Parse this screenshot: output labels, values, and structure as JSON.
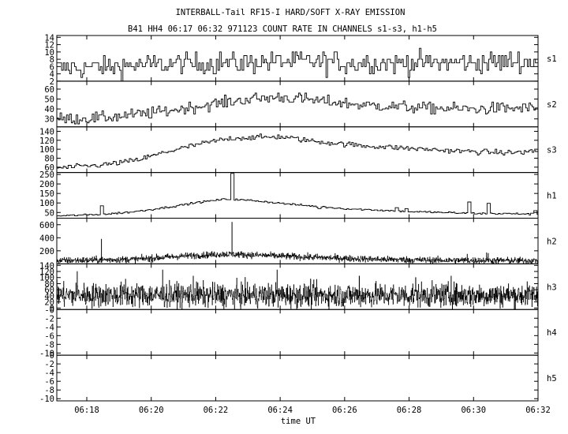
{
  "chart_data": {
    "type": "line",
    "title": "INTERBALL-Tail RF15-I HARD/SOFT X-RAY EMISSION",
    "subtitle": "B41 HH4 06:17 06:32 971123  COUNT RATE IN CHANNELS s1-s3, h1-h5",
    "xlabel": "time UT",
    "x_ticks": [
      "06:18",
      "06:20",
      "06:22",
      "06:24",
      "06:26",
      "06:28",
      "06:30",
      "06:32"
    ],
    "x_tick_minutes": [
      18,
      20,
      22,
      24,
      26,
      28,
      30,
      32
    ],
    "x_range_minutes": [
      17.07,
      32.0
    ],
    "grid": false,
    "panels": [
      {
        "name": "s1",
        "ylim": [
          2,
          14.5
        ],
        "y_ticks": [
          "14",
          "12",
          "10",
          "8",
          "6",
          "4",
          "2"
        ],
        "y_tick_values": [
          14,
          12,
          10,
          8,
          6,
          4,
          2
        ],
        "step": 0.05,
        "profile": [
          [
            17.07,
            5.5
          ],
          [
            20,
            6.5
          ],
          [
            22,
            7
          ],
          [
            24,
            7.5
          ],
          [
            26,
            7
          ],
          [
            28,
            7
          ],
          [
            30,
            7
          ],
          [
            32,
            7.5
          ]
        ],
        "noise": 3.0,
        "integer": true,
        "spikes": []
      },
      {
        "name": "s2",
        "ylim": [
          22,
          68
        ],
        "y_ticks": [
          "60",
          "50",
          "40",
          "30"
        ],
        "y_tick_values": [
          60,
          50,
          40,
          30
        ],
        "step": 0.05,
        "profile": [
          [
            17.07,
            30
          ],
          [
            18.5,
            31
          ],
          [
            20,
            36
          ],
          [
            21.5,
            43
          ],
          [
            23,
            50
          ],
          [
            24,
            52
          ],
          [
            25,
            49
          ],
          [
            26.5,
            44
          ],
          [
            28.5,
            41
          ],
          [
            30,
            40
          ],
          [
            32,
            41
          ]
        ],
        "noise": 6.0,
        "integer": true,
        "spikes": []
      },
      {
        "name": "s3",
        "ylim": [
          48,
          150
        ],
        "y_ticks": [
          "140",
          "120",
          "100",
          "80",
          "60"
        ],
        "y_tick_values": [
          140,
          120,
          100,
          80,
          60
        ],
        "step": 0.05,
        "profile": [
          [
            17.07,
            58
          ],
          [
            18.5,
            65
          ],
          [
            19.5,
            75
          ],
          [
            20.5,
            95
          ],
          [
            21.5,
            112
          ],
          [
            22.5,
            125
          ],
          [
            24,
            128
          ],
          [
            25,
            118
          ],
          [
            26.5,
            108
          ],
          [
            28,
            102
          ],
          [
            29.5,
            96
          ],
          [
            31,
            92
          ],
          [
            32,
            96
          ]
        ],
        "noise": 6.0,
        "integer": true,
        "spikes": []
      },
      {
        "name": "h1",
        "ylim": [
          20,
          260
        ],
        "y_ticks": [
          "250",
          "200",
          "150",
          "100",
          "50"
        ],
        "y_tick_values": [
          250,
          200,
          150,
          100,
          50
        ],
        "step": 0.05,
        "profile": [
          [
            17.07,
            32
          ],
          [
            18.5,
            40
          ],
          [
            19.5,
            55
          ],
          [
            20.5,
            78
          ],
          [
            21.5,
            105
          ],
          [
            22.3,
            120
          ],
          [
            23.2,
            112
          ],
          [
            24.5,
            90
          ],
          [
            26,
            70
          ],
          [
            28,
            55
          ],
          [
            30,
            45
          ],
          [
            32,
            42
          ]
        ],
        "noise": 5.0,
        "integer": true,
        "spikes": [
          [
            18.45,
            85
          ],
          [
            22.5,
            255
          ],
          [
            25.2,
            70
          ],
          [
            27.6,
            75
          ],
          [
            27.9,
            70
          ],
          [
            29.85,
            105
          ],
          [
            30.45,
            98
          ],
          [
            31.9,
            60
          ]
        ]
      },
      {
        "name": "h2",
        "ylim": [
          0,
          700
        ],
        "y_ticks": [
          "600",
          "400",
          "200"
        ],
        "y_tick_values": [
          600,
          400,
          200
        ],
        "step": 0.01,
        "profile": [
          [
            17.07,
            50
          ],
          [
            19.5,
            70
          ],
          [
            21,
            120
          ],
          [
            22.3,
            150
          ],
          [
            23.5,
            130
          ],
          [
            25,
            100
          ],
          [
            27,
            70
          ],
          [
            29,
            55
          ],
          [
            32,
            50
          ]
        ],
        "noise": 50,
        "integer": false,
        "spikes": [
          [
            18.45,
            380
          ],
          [
            22.5,
            640
          ],
          [
            25.1,
            150
          ],
          [
            30.4,
            170
          ],
          [
            30.45,
            160
          ],
          [
            29.8,
            150
          ]
        ]
      },
      {
        "name": "h3",
        "ylim": [
          -5,
          145
        ],
        "y_ticks": [
          "140",
          "120",
          "100",
          "80",
          "60",
          "40",
          "20",
          "0"
        ],
        "y_tick_values": [
          140,
          120,
          100,
          80,
          60,
          40,
          20,
          0
        ],
        "step": 0.01,
        "profile": [
          [
            17.07,
            42
          ],
          [
            32,
            42
          ]
        ],
        "noise": 40,
        "integer": false,
        "spikes": [
          [
            17.7,
            120
          ],
          [
            19.2,
            95
          ],
          [
            20.35,
            125
          ],
          [
            21.3,
            105
          ],
          [
            23.9,
            125
          ],
          [
            26.45,
            105
          ],
          [
            28.2,
            100
          ],
          [
            29.3,
            105
          ]
        ]
      },
      {
        "name": "h4",
        "ylim": [
          -10.5,
          0
        ],
        "y_ticks": [
          "-0",
          "-2",
          "-4",
          "-6",
          "-8",
          "-10"
        ],
        "y_tick_values": [
          0,
          -2,
          -4,
          -6,
          -8,
          -10
        ],
        "step": 0.05,
        "profile": [],
        "noise": 0,
        "integer": false,
        "spikes": []
      },
      {
        "name": "h5",
        "ylim": [
          -10.5,
          0
        ],
        "y_ticks": [
          "-0",
          "-2",
          "-4",
          "-6",
          "-8",
          "-10"
        ],
        "y_tick_values": [
          0,
          -2,
          -4,
          -6,
          -8,
          -10
        ],
        "step": 0.05,
        "profile": [],
        "noise": 0,
        "integer": false,
        "spikes": []
      }
    ]
  }
}
